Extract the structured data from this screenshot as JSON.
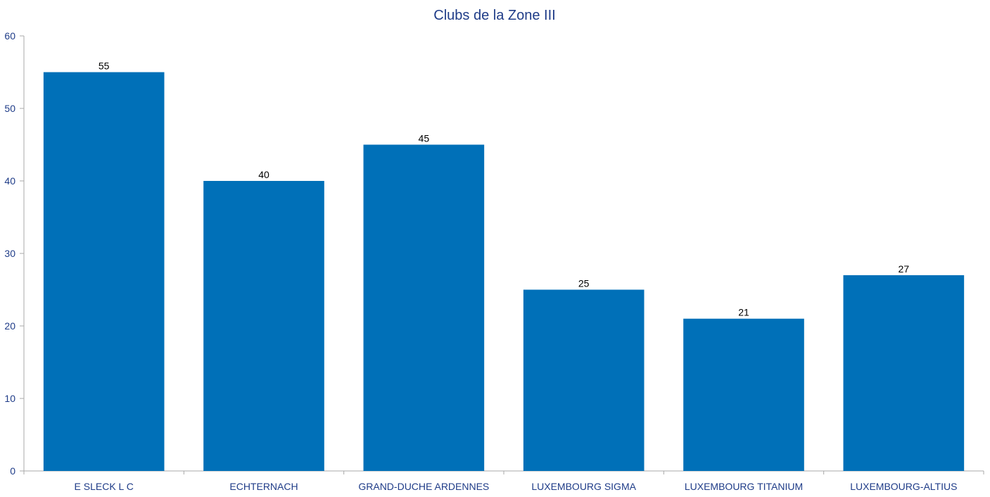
{
  "chart_data": {
    "type": "bar",
    "title": "Clubs de la Zone III",
    "xlabel": "",
    "ylabel": "",
    "categories": [
      "E SLECK L C",
      "ECHTERNACH",
      "GRAND-DUCHE ARDENNES",
      "LUXEMBOURG SIGMA",
      "LUXEMBOURG TITANIUM",
      "LUXEMBOURG-ALTIUS"
    ],
    "values": [
      55,
      40,
      45,
      25,
      21,
      27
    ],
    "ylim": [
      0,
      60
    ],
    "yticks": [
      "0",
      "10",
      "20",
      "30",
      "40",
      "50",
      "60"
    ],
    "data_labels": [
      "55",
      "40",
      "45",
      "25",
      "21",
      "27"
    ],
    "grid": false,
    "legend": "none",
    "colors": {
      "bar": "#0070B8",
      "title": "#1F3C88",
      "axis_text": "#1F3C88",
      "axis_line": "#A8A8A8",
      "data_label": "#000000"
    }
  }
}
